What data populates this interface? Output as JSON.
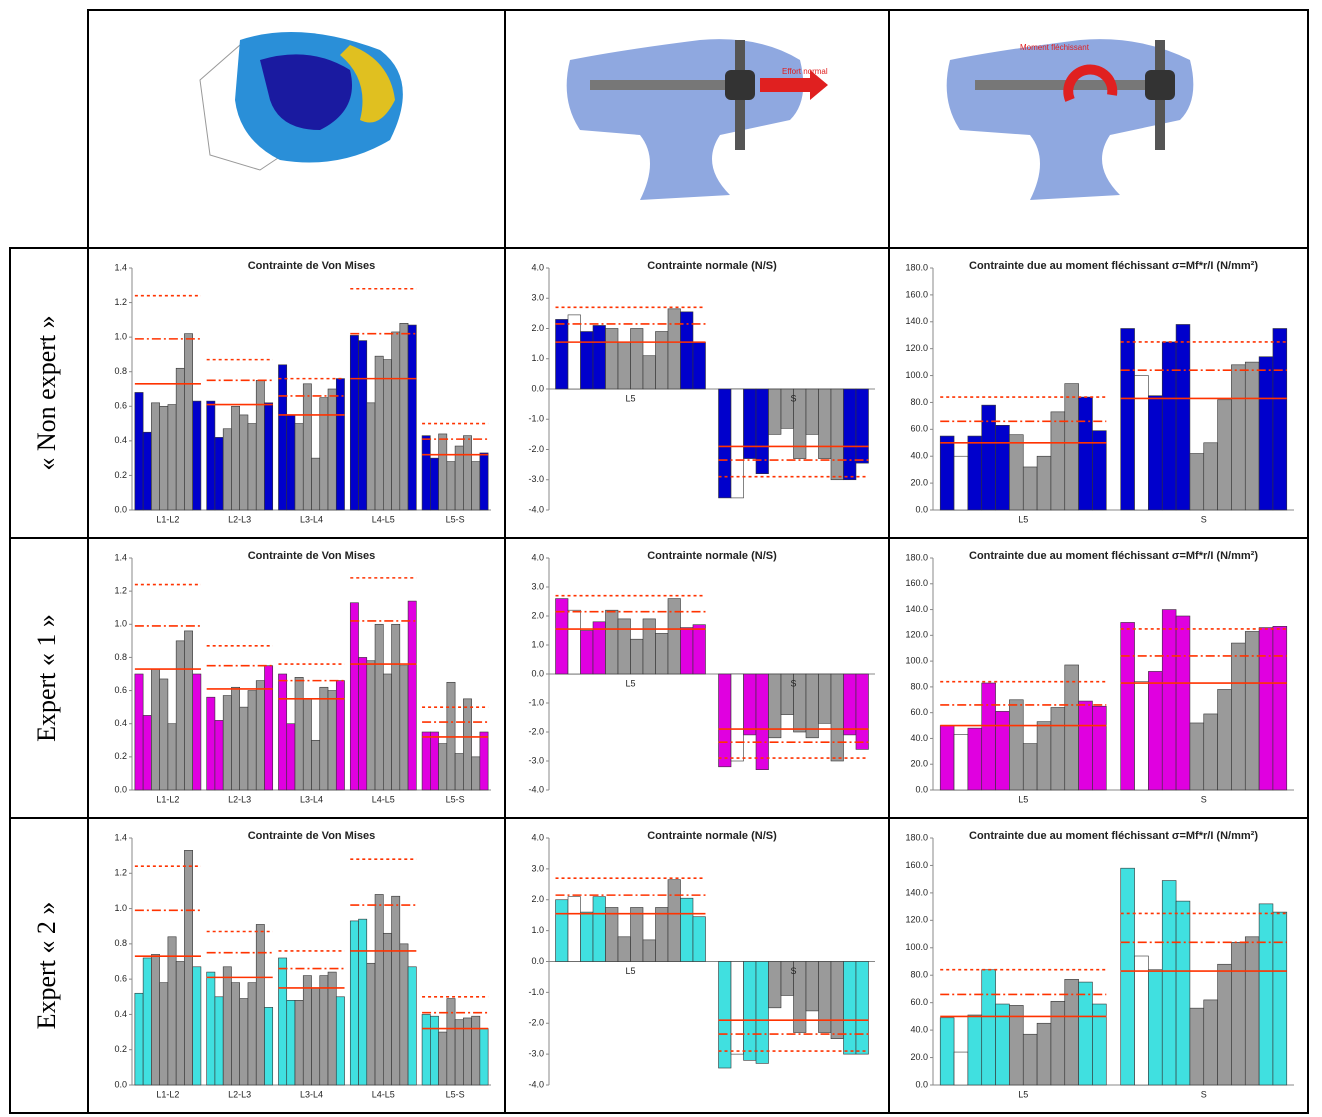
{
  "row_labels": [
    "« Non expert »",
    "Expert « 1 »",
    "Expert « 2 »"
  ],
  "illustration_labels": [
    "Effort normal",
    "Moment fléchissant"
  ],
  "chart_data": [
    {
      "type": "bar",
      "title": "Contrainte de Von Mises",
      "categories": [
        "L1-L2",
        "L2-L3",
        "L3-L4",
        "L4-L5",
        "L5-S"
      ],
      "values": [
        [
          0.68,
          0.45,
          0.62,
          0.6,
          0.61,
          0.82,
          1.02,
          0.63
        ],
        [
          0.63,
          0.42,
          0.47,
          0.6,
          0.55,
          0.5,
          0.75,
          0.62
        ],
        [
          0.84,
          0.55,
          0.5,
          0.73,
          0.3,
          0.65,
          0.7,
          0.76
        ],
        [
          1.01,
          0.98,
          0.62,
          0.89,
          0.87,
          1.03,
          1.08,
          1.07
        ],
        [
          0.43,
          0.3,
          0.44,
          0.28,
          0.37,
          0.43,
          0.28,
          0.33
        ]
      ],
      "colors": [
        "#0000cc",
        "#0000cc",
        "#9a9a9a",
        "#9a9a9a",
        "#9a9a9a",
        "#9a9a9a",
        "#9a9a9a",
        "#0000cc"
      ],
      "reference_lines": [
        {
          "style": "solid",
          "color": "#ff3300",
          "values": [
            0.73,
            0.61,
            0.55,
            0.76,
            0.32
          ]
        },
        {
          "style": "dashdot",
          "color": "#ff3300",
          "values": [
            0.99,
            0.75,
            0.66,
            1.02,
            0.41
          ]
        },
        {
          "style": "dotted",
          "color": "#ff3300",
          "values": [
            1.24,
            0.87,
            0.76,
            1.28,
            0.5
          ]
        }
      ],
      "ylim": [
        0,
        1.4
      ],
      "yticks": [
        {
          "value": 0,
          "label": "0.0"
        },
        0.2,
        0.4,
        0.6,
        0.8,
        {
          "value": 1,
          "label": "1.0"
        },
        1.2,
        1.4
      ]
    },
    {
      "type": "bar",
      "title": "Contrainte normale (N/S)",
      "categories": [
        "L5",
        "S"
      ],
      "values": [
        [
          2.3,
          2.45,
          1.9,
          2.1,
          2.0,
          1.55,
          2.0,
          1.1,
          1.9,
          2.65,
          2.55,
          1.55
        ],
        [
          -3.6,
          -3.6,
          -2.3,
          -2.8,
          -1.5,
          -1.3,
          -2.3,
          -1.5,
          -2.3,
          -3.0,
          -3.0,
          -2.45
        ]
      ],
      "colors": [
        "#0000cc",
        "#ffffff",
        "#0000cc",
        "#0000cc",
        "#9a9a9a",
        "#9a9a9a",
        "#9a9a9a",
        "#9a9a9a",
        "#9a9a9a",
        "#9a9a9a",
        "#0000cc",
        "#0000cc"
      ],
      "reference_lines": [
        {
          "style": "solid",
          "color": "#ff3300",
          "values": [
            1.55,
            -1.9
          ]
        },
        {
          "style": "dashdot",
          "color": "#ff3300",
          "values": [
            2.15,
            -2.35
          ]
        },
        {
          "style": "dotted",
          "color": "#ff3300",
          "values": [
            2.7,
            -2.9
          ]
        }
      ],
      "ylim": [
        -4,
        4
      ],
      "yticks": [
        {
          "value": -4,
          "label": "-4.0"
        },
        {
          "value": -3,
          "label": "-3.0"
        },
        {
          "value": -2,
          "label": "-2.0"
        },
        {
          "value": -1,
          "label": "-1.0"
        },
        {
          "value": 0,
          "label": "0.0"
        },
        {
          "value": 1,
          "label": "1.0"
        },
        {
          "value": 2,
          "label": "2.0"
        },
        {
          "value": 3,
          "label": "3.0"
        },
        {
          "value": 4,
          "label": "4.0"
        }
      ]
    },
    {
      "type": "bar",
      "title": "Contrainte due au moment fléchissant σ=Mf*r/I (N/mm²)",
      "categories": [
        "L5",
        "S"
      ],
      "values": [
        [
          55,
          40,
          55,
          78,
          63,
          56,
          32,
          40,
          73,
          94,
          84,
          59
        ],
        [
          135,
          100,
          85,
          125,
          138,
          42,
          50,
          82,
          108,
          110,
          114,
          135
        ]
      ],
      "colors": [
        "#0000cc",
        "#ffffff",
        "#0000cc",
        "#0000cc",
        "#0000cc",
        "#9a9a9a",
        "#9a9a9a",
        "#9a9a9a",
        "#9a9a9a",
        "#9a9a9a",
        "#0000cc",
        "#0000cc"
      ],
      "reference_lines": [
        {
          "style": "solid",
          "color": "#ff3300",
          "values": [
            50,
            83
          ]
        },
        {
          "style": "dashdot",
          "color": "#ff3300",
          "values": [
            66,
            104
          ]
        },
        {
          "style": "dotted",
          "color": "#ff3300",
          "values": [
            84,
            125
          ]
        }
      ],
      "ylim": [
        0,
        180
      ],
      "yticks": [
        {
          "value": 0,
          "label": "0.0"
        },
        {
          "value": 20,
          "label": "20.0"
        },
        {
          "value": 40,
          "label": "40.0"
        },
        {
          "value": 60,
          "label": "60.0"
        },
        {
          "value": 80,
          "label": "80.0"
        },
        {
          "value": 100,
          "label": "100.0"
        },
        {
          "value": 120,
          "label": "120.0"
        },
        {
          "value": 140,
          "label": "140.0"
        },
        {
          "value": 160,
          "label": "160.0"
        },
        {
          "value": 180,
          "label": "180.0"
        }
      ]
    },
    {
      "type": "bar",
      "title": "Contrainte de Von Mises",
      "categories": [
        "L1-L2",
        "L2-L3",
        "L3-L4",
        "L4-L5",
        "L5-S"
      ],
      "values": [
        [
          0.7,
          0.45,
          0.73,
          0.67,
          0.4,
          0.9,
          0.96,
          0.7
        ],
        [
          0.56,
          0.42,
          0.57,
          0.62,
          0.5,
          0.6,
          0.66,
          0.75
        ],
        [
          0.7,
          0.4,
          0.68,
          0.55,
          0.3,
          0.62,
          0.6,
          0.66
        ],
        [
          1.13,
          0.8,
          0.78,
          1.0,
          0.7,
          1.0,
          0.75,
          1.14
        ],
        [
          0.35,
          0.35,
          0.28,
          0.65,
          0.22,
          0.55,
          0.2,
          0.35
        ]
      ],
      "colors": [
        "#e000e0",
        "#e000e0",
        "#9a9a9a",
        "#9a9a9a",
        "#9a9a9a",
        "#9a9a9a",
        "#9a9a9a",
        "#e000e0"
      ],
      "reference_lines": [
        {
          "style": "solid",
          "color": "#ff3300",
          "values": [
            0.73,
            0.61,
            0.55,
            0.76,
            0.32
          ]
        },
        {
          "style": "dashdot",
          "color": "#ff3300",
          "values": [
            0.99,
            0.75,
            0.66,
            1.02,
            0.41
          ]
        },
        {
          "style": "dotted",
          "color": "#ff3300",
          "values": [
            1.24,
            0.87,
            0.76,
            1.28,
            0.5
          ]
        }
      ],
      "ylim": [
        0,
        1.4
      ],
      "yticks": [
        {
          "value": 0,
          "label": "0.0"
        },
        0.2,
        0.4,
        0.6,
        0.8,
        {
          "value": 1,
          "label": "1.0"
        },
        1.2,
        1.4
      ]
    },
    {
      "type": "bar",
      "title": "Contrainte normale (N/S)",
      "categories": [
        "L5",
        "S"
      ],
      "values": [
        [
          2.6,
          2.2,
          1.5,
          1.8,
          2.2,
          1.9,
          1.2,
          1.9,
          1.4,
          2.6,
          1.6,
          1.7
        ],
        [
          -3.2,
          -3.0,
          -2.1,
          -3.3,
          -2.2,
          -1.4,
          -2.0,
          -2.2,
          -1.7,
          -3.0,
          -2.1,
          -2.6
        ]
      ],
      "colors": [
        "#e000e0",
        "#ffffff",
        "#e000e0",
        "#e000e0",
        "#9a9a9a",
        "#9a9a9a",
        "#9a9a9a",
        "#9a9a9a",
        "#9a9a9a",
        "#9a9a9a",
        "#e000e0",
        "#e000e0"
      ],
      "reference_lines": [
        {
          "style": "solid",
          "color": "#ff3300",
          "values": [
            1.55,
            -1.9
          ]
        },
        {
          "style": "dashdot",
          "color": "#ff3300",
          "values": [
            2.15,
            -2.35
          ]
        },
        {
          "style": "dotted",
          "color": "#ff3300",
          "values": [
            2.7,
            -2.9
          ]
        }
      ],
      "ylim": [
        -4,
        4
      ],
      "yticks": [
        {
          "value": -4,
          "label": "-4.0"
        },
        {
          "value": -3,
          "label": "-3.0"
        },
        {
          "value": -2,
          "label": "-2.0"
        },
        {
          "value": -1,
          "label": "-1.0"
        },
        {
          "value": 0,
          "label": "0.0"
        },
        {
          "value": 1,
          "label": "1.0"
        },
        {
          "value": 2,
          "label": "2.0"
        },
        {
          "value": 3,
          "label": "3.0"
        },
        {
          "value": 4,
          "label": "4.0"
        }
      ]
    },
    {
      "type": "bar",
      "title": "Contrainte due au moment fléchissant σ=Mf*r/I (N/mm²)",
      "categories": [
        "L5",
        "S"
      ],
      "values": [
        [
          50,
          43,
          48,
          83,
          61,
          70,
          36,
          53,
          64,
          97,
          69,
          65
        ],
        [
          130,
          84,
          92,
          140,
          135,
          52,
          59,
          78,
          114,
          123,
          126,
          127
        ]
      ],
      "colors": [
        "#e000e0",
        "#ffffff",
        "#e000e0",
        "#e000e0",
        "#e000e0",
        "#9a9a9a",
        "#9a9a9a",
        "#9a9a9a",
        "#9a9a9a",
        "#9a9a9a",
        "#e000e0",
        "#e000e0"
      ],
      "reference_lines": [
        {
          "style": "solid",
          "color": "#ff3300",
          "values": [
            50,
            83
          ]
        },
        {
          "style": "dashdot",
          "color": "#ff3300",
          "values": [
            66,
            104
          ]
        },
        {
          "style": "dotted",
          "color": "#ff3300",
          "values": [
            84,
            125
          ]
        }
      ],
      "ylim": [
        0,
        180
      ],
      "yticks": [
        {
          "value": 0,
          "label": "0.0"
        },
        {
          "value": 20,
          "label": "20.0"
        },
        {
          "value": 40,
          "label": "40.0"
        },
        {
          "value": 60,
          "label": "60.0"
        },
        {
          "value": 80,
          "label": "80.0"
        },
        {
          "value": 100,
          "label": "100.0"
        },
        {
          "value": 120,
          "label": "120.0"
        },
        {
          "value": 140,
          "label": "140.0"
        },
        {
          "value": 160,
          "label": "160.0"
        },
        {
          "value": 180,
          "label": "180.0"
        }
      ]
    },
    {
      "type": "bar",
      "title": "Contrainte de Von Mises",
      "categories": [
        "L1-L2",
        "L2-L3",
        "L3-L4",
        "L4-L5",
        "L5-S"
      ],
      "values": [
        [
          0.52,
          0.72,
          0.74,
          0.58,
          0.84,
          0.7,
          1.33,
          0.67
        ],
        [
          0.64,
          0.5,
          0.67,
          0.58,
          0.49,
          0.58,
          0.91,
          0.44
        ],
        [
          0.72,
          0.48,
          0.48,
          0.62,
          0.55,
          0.62,
          0.64,
          0.5
        ],
        [
          0.93,
          0.94,
          0.69,
          1.08,
          0.86,
          1.07,
          0.8,
          0.67
        ],
        [
          0.4,
          0.39,
          0.3,
          0.49,
          0.37,
          0.38,
          0.39,
          0.32
        ]
      ],
      "colors": [
        "#40e0e0",
        "#40e0e0",
        "#9a9a9a",
        "#9a9a9a",
        "#9a9a9a",
        "#9a9a9a",
        "#9a9a9a",
        "#40e0e0"
      ],
      "reference_lines": [
        {
          "style": "solid",
          "color": "#ff3300",
          "values": [
            0.73,
            0.61,
            0.55,
            0.76,
            0.32
          ]
        },
        {
          "style": "dashdot",
          "color": "#ff3300",
          "values": [
            0.99,
            0.75,
            0.66,
            1.02,
            0.41
          ]
        },
        {
          "style": "dotted",
          "color": "#ff3300",
          "values": [
            1.24,
            0.87,
            0.76,
            1.28,
            0.5
          ]
        }
      ],
      "ylim": [
        0,
        1.4
      ],
      "yticks": [
        {
          "value": 0,
          "label": "0.0"
        },
        0.2,
        0.4,
        0.6,
        0.8,
        {
          "value": 1,
          "label": "1.0"
        },
        1.2,
        1.4
      ]
    },
    {
      "type": "bar",
      "title": "Contrainte normale (N/S)",
      "categories": [
        "L5",
        "S"
      ],
      "values": [
        [
          2.0,
          2.1,
          1.6,
          2.1,
          1.75,
          0.8,
          1.75,
          0.7,
          1.75,
          2.65,
          2.05,
          1.45
        ],
        [
          -3.45,
          -3.0,
          -3.2,
          -3.3,
          -1.5,
          -1.1,
          -2.3,
          -1.6,
          -2.3,
          -2.5,
          -3.0,
          -3.0
        ]
      ],
      "colors": [
        "#40e0e0",
        "#ffffff",
        "#40e0e0",
        "#40e0e0",
        "#9a9a9a",
        "#9a9a9a",
        "#9a9a9a",
        "#9a9a9a",
        "#9a9a9a",
        "#9a9a9a",
        "#40e0e0",
        "#40e0e0"
      ],
      "reference_lines": [
        {
          "style": "solid",
          "color": "#ff3300",
          "values": [
            1.55,
            -1.9
          ]
        },
        {
          "style": "dashdot",
          "color": "#ff3300",
          "values": [
            2.15,
            -2.35
          ]
        },
        {
          "style": "dotted",
          "color": "#ff3300",
          "values": [
            2.7,
            -2.9
          ]
        }
      ],
      "ylim": [
        -4,
        4
      ],
      "yticks": [
        {
          "value": -4,
          "label": "-4.0"
        },
        {
          "value": -3,
          "label": "-3.0"
        },
        {
          "value": -2,
          "label": "-2.0"
        },
        {
          "value": -1,
          "label": "-1.0"
        },
        {
          "value": 0,
          "label": "0.0"
        },
        {
          "value": 1,
          "label": "1.0"
        },
        {
          "value": 2,
          "label": "2.0"
        },
        {
          "value": 3,
          "label": "3.0"
        },
        {
          "value": 4,
          "label": "4.0"
        }
      ]
    },
    {
      "type": "bar",
      "title": "Contrainte due au moment fléchissant σ=Mf*r/I (N/mm²)",
      "categories": [
        "L5",
        "S"
      ],
      "values": [
        [
          49,
          24,
          51,
          84,
          59,
          58,
          37,
          45,
          61,
          77,
          75,
          59
        ],
        [
          158,
          94,
          84,
          149,
          134,
          56,
          62,
          88,
          104,
          108,
          132,
          126
        ]
      ],
      "colors": [
        "#40e0e0",
        "#ffffff",
        "#40e0e0",
        "#40e0e0",
        "#40e0e0",
        "#9a9a9a",
        "#9a9a9a",
        "#9a9a9a",
        "#9a9a9a",
        "#9a9a9a",
        "#40e0e0",
        "#40e0e0"
      ],
      "reference_lines": [
        {
          "style": "solid",
          "color": "#ff3300",
          "values": [
            50,
            83
          ]
        },
        {
          "style": "dashdot",
          "color": "#ff3300",
          "values": [
            66,
            104
          ]
        },
        {
          "style": "dotted",
          "color": "#ff3300",
          "values": [
            84,
            125
          ]
        }
      ],
      "ylim": [
        0,
        180
      ],
      "yticks": [
        {
          "value": 0,
          "label": "0.0"
        },
        {
          "value": 20,
          "label": "20.0"
        },
        {
          "value": 40,
          "label": "40.0"
        },
        {
          "value": 60,
          "label": "60.0"
        },
        {
          "value": 80,
          "label": "80.0"
        },
        {
          "value": 100,
          "label": "100.0"
        },
        {
          "value": 120,
          "label": "120.0"
        },
        {
          "value": 140,
          "label": "140.0"
        },
        {
          "value": 160,
          "label": "160.0"
        },
        {
          "value": 180,
          "label": "180.0"
        }
      ]
    }
  ]
}
